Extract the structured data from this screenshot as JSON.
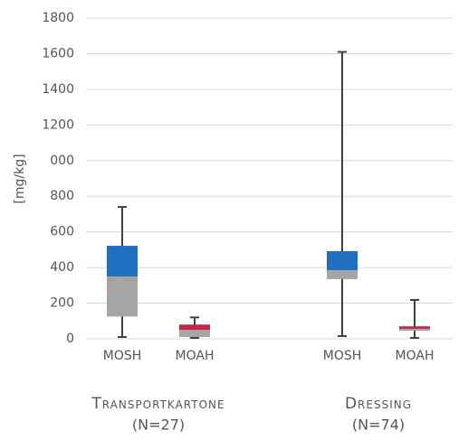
{
  "chart_data": {
    "type": "box",
    "y_label": "[mg/kg]",
    "ylim": [
      0,
      1800
    ],
    "yticks": [
      0,
      200,
      400,
      600,
      800,
      {
        "value": 1000,
        "label": "000"
      },
      1200,
      1400,
      1600,
      1800
    ],
    "grid": true,
    "lower_color": "#a5a5a5",
    "groups": [
      {
        "label": "Transportkartone",
        "sublabel": "(N=27)",
        "boxes": [
          {
            "name": "MOSH",
            "color": "#1f70c1",
            "min": 10,
            "q1": 125,
            "median": 350,
            "q3": 522,
            "max": 740
          },
          {
            "name": "MOAH",
            "color": "#c4264a",
            "min": 5,
            "q1": 10,
            "median": 50,
            "q3": 80,
            "max": 120
          }
        ]
      },
      {
        "label": "Dressing",
        "sublabel": "(N=74)",
        "boxes": [
          {
            "name": "MOSH",
            "color": "#1f70c1",
            "min": 15,
            "q1": 335,
            "median": 385,
            "q3": 492,
            "max": 1610
          },
          {
            "name": "MOAH",
            "color": "#c4264a",
            "min": 5,
            "q1": 45,
            "median": 56,
            "q3": 70,
            "max": 218
          }
        ]
      }
    ]
  }
}
